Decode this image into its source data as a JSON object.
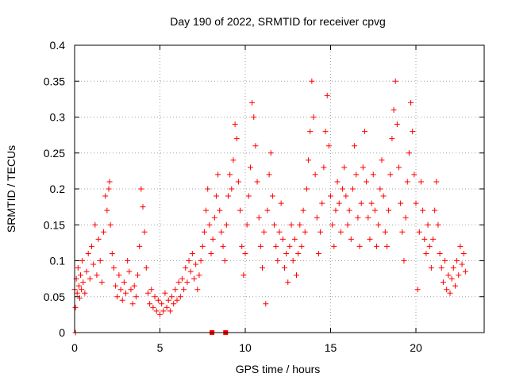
{
  "chart_data": {
    "type": "scatter",
    "title": "Day 190 of 2022, SRMTID for receiver cpvg",
    "xlabel": "GPS time / hours",
    "ylabel": "SRMTID / TECUs",
    "xlim": [
      0,
      24
    ],
    "ylim": [
      0,
      0.4
    ],
    "xticks": [
      0,
      5,
      10,
      15,
      20
    ],
    "xtick_labels": [
      "0",
      "5",
      "10",
      "15",
      "20"
    ],
    "yticks": [
      0,
      0.05,
      0.1,
      0.15,
      0.2,
      0.25,
      0.3,
      0.35,
      0.4
    ],
    "ytick_labels": [
      "0",
      "0.05",
      "0.1",
      "0.15",
      "0.2",
      "0.25",
      "0.3",
      "0.35",
      "0.4"
    ],
    "grid": true,
    "marker": "plus",
    "marker_color": "#ff0000",
    "zero_markers": [
      {
        "x": 0.05,
        "y": 0,
        "shape": "plus"
      },
      {
        "x": 8.05,
        "y": 0,
        "shape": "square"
      },
      {
        "x": 8.85,
        "y": 0,
        "shape": "square"
      }
    ],
    "series": [
      {
        "name": "SRMTID",
        "points": [
          [
            0.0,
            0.06
          ],
          [
            0.05,
            0.035
          ],
          [
            0.1,
            0.075
          ],
          [
            0.15,
            0.055
          ],
          [
            0.2,
            0.09
          ],
          [
            0.25,
            0.065
          ],
          [
            0.3,
            0.048
          ],
          [
            0.35,
            0.08
          ],
          [
            0.4,
            0.06
          ],
          [
            0.45,
            0.1
          ],
          [
            0.5,
            0.07
          ],
          [
            0.6,
            0.055
          ],
          [
            0.7,
            0.085
          ],
          [
            0.8,
            0.11
          ],
          [
            0.9,
            0.075
          ],
          [
            1.0,
            0.12
          ],
          [
            1.1,
            0.095
          ],
          [
            1.2,
            0.15
          ],
          [
            1.3,
            0.08
          ],
          [
            1.4,
            0.13
          ],
          [
            1.5,
            0.1
          ],
          [
            1.6,
            0.07
          ],
          [
            1.7,
            0.14
          ],
          [
            1.8,
            0.19
          ],
          [
            1.9,
            0.17
          ],
          [
            2.0,
            0.2
          ],
          [
            2.05,
            0.21
          ],
          [
            2.1,
            0.15
          ],
          [
            2.2,
            0.11
          ],
          [
            2.3,
            0.09
          ],
          [
            2.4,
            0.065
          ],
          [
            2.5,
            0.05
          ],
          [
            2.6,
            0.08
          ],
          [
            2.7,
            0.06
          ],
          [
            2.8,
            0.045
          ],
          [
            2.9,
            0.07
          ],
          [
            3.0,
            0.055
          ],
          [
            3.1,
            0.1
          ],
          [
            3.2,
            0.085
          ],
          [
            3.3,
            0.06
          ],
          [
            3.4,
            0.04
          ],
          [
            3.5,
            0.065
          ],
          [
            3.6,
            0.05
          ],
          [
            3.7,
            0.08
          ],
          [
            3.8,
            0.12
          ],
          [
            3.9,
            0.2
          ],
          [
            4.0,
            0.175
          ],
          [
            4.1,
            0.14
          ],
          [
            4.2,
            0.09
          ],
          [
            4.3,
            0.055
          ],
          [
            4.4,
            0.04
          ],
          [
            4.5,
            0.06
          ],
          [
            4.6,
            0.035
          ],
          [
            4.7,
            0.05
          ],
          [
            4.8,
            0.03
          ],
          [
            4.9,
            0.045
          ],
          [
            5.0,
            0.025
          ],
          [
            5.1,
            0.04
          ],
          [
            5.2,
            0.03
          ],
          [
            5.3,
            0.055
          ],
          [
            5.4,
            0.035
          ],
          [
            5.5,
            0.045
          ],
          [
            5.6,
            0.03
          ],
          [
            5.7,
            0.05
          ],
          [
            5.8,
            0.04
          ],
          [
            5.9,
            0.06
          ],
          [
            6.0,
            0.045
          ],
          [
            6.1,
            0.07
          ],
          [
            6.2,
            0.05
          ],
          [
            6.3,
            0.075
          ],
          [
            6.4,
            0.06
          ],
          [
            6.5,
            0.09
          ],
          [
            6.6,
            0.07
          ],
          [
            6.7,
            0.1
          ],
          [
            6.8,
            0.085
          ],
          [
            6.9,
            0.11
          ],
          [
            7.0,
            0.075
          ],
          [
            7.1,
            0.095
          ],
          [
            7.2,
            0.06
          ],
          [
            7.3,
            0.08
          ],
          [
            7.4,
            0.1
          ],
          [
            7.5,
            0.12
          ],
          [
            7.6,
            0.14
          ],
          [
            7.7,
            0.17
          ],
          [
            7.8,
            0.2
          ],
          [
            7.9,
            0.15
          ],
          [
            8.0,
            0.11
          ],
          [
            8.1,
            0.13
          ],
          [
            8.2,
            0.16
          ],
          [
            8.3,
            0.19
          ],
          [
            8.4,
            0.22
          ],
          [
            8.5,
            0.17
          ],
          [
            8.6,
            0.14
          ],
          [
            8.7,
            0.12
          ],
          [
            8.8,
            0.1
          ],
          [
            8.9,
            0.15
          ],
          [
            9.0,
            0.19
          ],
          [
            9.1,
            0.22
          ],
          [
            9.2,
            0.2
          ],
          [
            9.3,
            0.24
          ],
          [
            9.4,
            0.29
          ],
          [
            9.5,
            0.27
          ],
          [
            9.6,
            0.21
          ],
          [
            9.7,
            0.17
          ],
          [
            9.8,
            0.12
          ],
          [
            9.9,
            0.08
          ],
          [
            10.0,
            0.11
          ],
          [
            10.1,
            0.15
          ],
          [
            10.2,
            0.19
          ],
          [
            10.3,
            0.23
          ],
          [
            10.4,
            0.32
          ],
          [
            10.5,
            0.3
          ],
          [
            10.6,
            0.26
          ],
          [
            10.7,
            0.21
          ],
          [
            10.8,
            0.16
          ],
          [
            10.9,
            0.12
          ],
          [
            11.0,
            0.09
          ],
          [
            11.1,
            0.14
          ],
          [
            11.2,
            0.04
          ],
          [
            11.3,
            0.17
          ],
          [
            11.4,
            0.22
          ],
          [
            11.5,
            0.25
          ],
          [
            11.6,
            0.19
          ],
          [
            11.7,
            0.15
          ],
          [
            11.8,
            0.12
          ],
          [
            11.9,
            0.1
          ],
          [
            12.0,
            0.14
          ],
          [
            12.1,
            0.18
          ],
          [
            12.2,
            0.13
          ],
          [
            12.3,
            0.09
          ],
          [
            12.4,
            0.11
          ],
          [
            12.5,
            0.07
          ],
          [
            12.6,
            0.12
          ],
          [
            12.7,
            0.15
          ],
          [
            12.8,
            0.1
          ],
          [
            12.9,
            0.13
          ],
          [
            13.0,
            0.08
          ],
          [
            13.1,
            0.11
          ],
          [
            13.2,
            0.15
          ],
          [
            13.3,
            0.12
          ],
          [
            13.4,
            0.17
          ],
          [
            13.5,
            0.14
          ],
          [
            13.6,
            0.2
          ],
          [
            13.7,
            0.24
          ],
          [
            13.8,
            0.28
          ],
          [
            13.9,
            0.35
          ],
          [
            14.0,
            0.3
          ],
          [
            14.1,
            0.22
          ],
          [
            14.2,
            0.16
          ],
          [
            14.3,
            0.11
          ],
          [
            14.4,
            0.14
          ],
          [
            14.5,
            0.18
          ],
          [
            14.6,
            0.23
          ],
          [
            14.7,
            0.28
          ],
          [
            14.8,
            0.33
          ],
          [
            14.9,
            0.26
          ],
          [
            15.0,
            0.19
          ],
          [
            15.1,
            0.15
          ],
          [
            15.2,
            0.12
          ],
          [
            15.3,
            0.17
          ],
          [
            15.4,
            0.21
          ],
          [
            15.5,
            0.18
          ],
          [
            15.6,
            0.14
          ],
          [
            15.7,
            0.2
          ],
          [
            15.8,
            0.23
          ],
          [
            15.9,
            0.19
          ],
          [
            16.0,
            0.15
          ],
          [
            16.1,
            0.17
          ],
          [
            16.2,
            0.13
          ],
          [
            16.3,
            0.2
          ],
          [
            16.4,
            0.26
          ],
          [
            16.5,
            0.22
          ],
          [
            16.6,
            0.16
          ],
          [
            16.7,
            0.12
          ],
          [
            16.8,
            0.18
          ],
          [
            16.9,
            0.23
          ],
          [
            17.0,
            0.28
          ],
          [
            17.1,
            0.21
          ],
          [
            17.2,
            0.16
          ],
          [
            17.3,
            0.13
          ],
          [
            17.4,
            0.18
          ],
          [
            17.5,
            0.22
          ],
          [
            17.6,
            0.17
          ],
          [
            17.7,
            0.12
          ],
          [
            17.8,
            0.15
          ],
          [
            17.9,
            0.2
          ],
          [
            18.0,
            0.24
          ],
          [
            18.1,
            0.19
          ],
          [
            18.2,
            0.14
          ],
          [
            18.3,
            0.12
          ],
          [
            18.4,
            0.17
          ],
          [
            18.5,
            0.22
          ],
          [
            18.6,
            0.27
          ],
          [
            18.7,
            0.31
          ],
          [
            18.8,
            0.35
          ],
          [
            18.9,
            0.29
          ],
          [
            19.0,
            0.23
          ],
          [
            19.1,
            0.18
          ],
          [
            19.2,
            0.14
          ],
          [
            19.3,
            0.1
          ],
          [
            19.4,
            0.16
          ],
          [
            19.5,
            0.21
          ],
          [
            19.6,
            0.25
          ],
          [
            19.7,
            0.32
          ],
          [
            19.8,
            0.28
          ],
          [
            19.9,
            0.22
          ],
          [
            20.0,
            0.18
          ],
          [
            20.1,
            0.06
          ],
          [
            20.2,
            0.14
          ],
          [
            20.3,
            0.21
          ],
          [
            20.4,
            0.17
          ],
          [
            20.5,
            0.13
          ],
          [
            20.6,
            0.11
          ],
          [
            20.7,
            0.15
          ],
          [
            20.8,
            0.12
          ],
          [
            20.9,
            0.09
          ],
          [
            21.0,
            0.13
          ],
          [
            21.1,
            0.17
          ],
          [
            21.2,
            0.21
          ],
          [
            21.3,
            0.15
          ],
          [
            21.4,
            0.11
          ],
          [
            21.5,
            0.09
          ],
          [
            21.6,
            0.07
          ],
          [
            21.7,
            0.1
          ],
          [
            21.8,
            0.06
          ],
          [
            21.9,
            0.08
          ],
          [
            22.0,
            0.055
          ],
          [
            22.1,
            0.075
          ],
          [
            22.2,
            0.09
          ],
          [
            22.3,
            0.065
          ],
          [
            22.4,
            0.1
          ],
          [
            22.5,
            0.08
          ],
          [
            22.6,
            0.12
          ],
          [
            22.7,
            0.095
          ],
          [
            22.8,
            0.11
          ],
          [
            22.9,
            0.085
          ]
        ]
      }
    ]
  }
}
